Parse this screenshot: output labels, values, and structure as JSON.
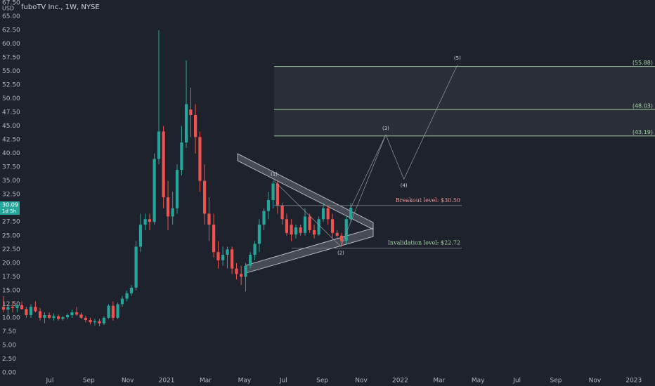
{
  "chart_data": {
    "type": "candlestick",
    "title": "fuboTV Inc., 1W, NYSE",
    "currency": "USD",
    "up_color": "#26a69a",
    "down_color": "#ef5350",
    "grid": false,
    "xlim": [
      -2.56,
      31.09
    ],
    "ylim": [
      -0.9,
      68
    ],
    "xticks": [
      {
        "value": 0,
        "label": "Jul"
      },
      {
        "value": 2,
        "label": "Sep"
      },
      {
        "value": 4,
        "label": "Nov"
      },
      {
        "value": 6,
        "label": "2021"
      },
      {
        "value": 8,
        "label": "Mar"
      },
      {
        "value": 10,
        "label": "May"
      },
      {
        "value": 12,
        "label": "Jul"
      },
      {
        "value": 14,
        "label": "Sep"
      },
      {
        "value": 16,
        "label": "Nov"
      },
      {
        "value": 18,
        "label": "2022"
      },
      {
        "value": 20,
        "label": "Mar"
      },
      {
        "value": 22,
        "label": "May"
      },
      {
        "value": 24,
        "label": "Jul"
      },
      {
        "value": 26,
        "label": "Sep"
      },
      {
        "value": 28,
        "label": "Nov"
      },
      {
        "value": 30,
        "label": "2023"
      }
    ],
    "yticks": [
      {
        "value": 0,
        "label": "0.00"
      },
      {
        "value": 2.5,
        "label": "2.50"
      },
      {
        "value": 5,
        "label": "5.00"
      },
      {
        "value": 7.5,
        "label": "7.50"
      },
      {
        "value": 10,
        "label": "10.00"
      },
      {
        "value": 12.5,
        "label": "12.50"
      },
      {
        "value": 15,
        "label": "15.00"
      },
      {
        "value": 17.5,
        "label": "17.50"
      },
      {
        "value": 20,
        "label": "20.00"
      },
      {
        "value": 22.5,
        "label": "22.50"
      },
      {
        "value": 25,
        "label": "25.00"
      },
      {
        "value": 27.5,
        "label": "27.50"
      },
      {
        "value": 32.5,
        "label": "32.50"
      },
      {
        "value": 35,
        "label": "35.00"
      },
      {
        "value": 37.5,
        "label": "37.50"
      },
      {
        "value": 40,
        "label": "40.00"
      },
      {
        "value": 42.5,
        "label": "42.50"
      },
      {
        "value": 45,
        "label": "45.00"
      },
      {
        "value": 47.5,
        "label": "47.50"
      },
      {
        "value": 50,
        "label": "50.00"
      },
      {
        "value": 52.5,
        "label": "52.50"
      },
      {
        "value": 55,
        "label": "55.00"
      },
      {
        "value": 57.5,
        "label": "57.50"
      },
      {
        "value": 60,
        "label": "60.00"
      },
      {
        "value": 62.5,
        "label": "62.50"
      },
      {
        "value": 65,
        "label": "65.00"
      },
      {
        "value": 67.5,
        "label": "67.50"
      }
    ],
    "x": [
      -2.38,
      -2.15,
      -1.91,
      -1.68,
      -1.44,
      -1.21,
      -0.97,
      -0.74,
      -0.5,
      -0.27,
      -0.03,
      0.2,
      0.44,
      0.67,
      0.91,
      1.14,
      1.38,
      1.61,
      1.84,
      2.08,
      2.31,
      2.55,
      2.78,
      3.02,
      3.25,
      3.49,
      3.72,
      3.96,
      4.19,
      4.43,
      4.66,
      4.9,
      5.13,
      5.37,
      5.6,
      5.84,
      6.07,
      6.31,
      6.54,
      6.77,
      7.01,
      7.24,
      7.48,
      7.71,
      7.95,
      8.18,
      8.42,
      8.65,
      8.89,
      9.12,
      9.36,
      9.59,
      9.83,
      10.06,
      10.3,
      10.53,
      10.76,
      11,
      11.23,
      11.47,
      11.7,
      11.94,
      12.17,
      12.41,
      12.64,
      12.88,
      13.11,
      13.35,
      13.58,
      13.82,
      14.05,
      14.29,
      14.52,
      14.76,
      14.99,
      15.23,
      15.46
    ],
    "candles": [
      [
        12,
        14,
        11,
        11.5
      ],
      [
        11.5,
        12.5,
        10.5,
        12
      ],
      [
        12,
        13,
        11,
        11.8
      ],
      [
        11.8,
        12.5,
        11,
        12.3
      ],
      [
        12.3,
        13,
        11.5,
        11.6
      ],
      [
        11.6,
        12,
        10,
        10.5
      ],
      [
        10.5,
        12.5,
        10,
        12
      ],
      [
        12,
        13,
        11,
        11.2
      ],
      [
        11.2,
        11.8,
        9.5,
        10
      ],
      [
        10,
        11,
        9,
        10.5
      ],
      [
        10.5,
        11,
        9.8,
        10
      ],
      [
        10,
        10.8,
        9.5,
        10.3
      ],
      [
        10.3,
        10.6,
        9.5,
        9.8
      ],
      [
        9.8,
        10.4,
        9.5,
        10.1
      ],
      [
        10.1,
        10.8,
        9.8,
        10.5
      ],
      [
        10.5,
        11.5,
        10,
        11
      ],
      [
        11,
        12,
        10.4,
        10.6
      ],
      [
        10.6,
        11,
        9.8,
        10
      ],
      [
        10,
        10.4,
        9.2,
        9.6
      ],
      [
        9.6,
        10,
        8.8,
        9.2
      ],
      [
        9.2,
        9.8,
        8.6,
        9.4
      ],
      [
        9.4,
        9.8,
        8.5,
        9
      ],
      [
        9,
        10.3,
        8.7,
        10
      ],
      [
        10,
        12.5,
        9.8,
        12.2
      ],
      [
        12.2,
        13,
        9.5,
        10
      ],
      [
        10,
        12.8,
        9.8,
        12.5
      ],
      [
        12.5,
        14,
        12,
        13.5
      ],
      [
        13.5,
        15,
        13,
        14.5
      ],
      [
        14.5,
        16,
        14,
        15.5
      ],
      [
        15.5,
        24,
        15,
        23
      ],
      [
        23,
        29,
        22,
        27
      ],
      [
        27,
        29,
        26,
        28
      ],
      [
        28,
        29,
        26,
        27.5
      ],
      [
        27.5,
        40,
        27,
        39
      ],
      [
        39,
        62.5,
        38,
        44
      ],
      [
        44,
        45,
        30,
        32
      ],
      [
        32,
        35,
        26,
        28.5
      ],
      [
        28.5,
        33,
        27,
        30
      ],
      [
        30,
        38,
        29,
        37
      ],
      [
        37,
        45,
        36,
        42
      ],
      [
        42,
        57,
        41,
        49
      ],
      [
        48,
        52,
        43,
        47
      ],
      [
        47,
        49,
        40,
        43
      ],
      [
        43,
        44,
        33,
        35
      ],
      [
        35,
        38,
        27,
        29
      ],
      [
        29,
        32,
        24,
        27
      ],
      [
        27,
        29,
        21,
        22
      ],
      [
        22,
        24,
        19,
        20.5
      ],
      [
        20.5,
        23,
        19.5,
        21.5
      ],
      [
        21.5,
        23,
        19,
        22.5
      ],
      [
        22.5,
        23,
        18,
        19
      ],
      [
        19,
        20,
        17,
        18
      ],
      [
        18,
        19.5,
        16,
        17.5
      ],
      [
        17.5,
        20,
        14.8,
        19.5
      ],
      [
        19.5,
        22,
        19,
        21.5
      ],
      [
        21.5,
        24,
        20.5,
        23.5
      ],
      [
        23.5,
        28,
        22,
        27
      ],
      [
        27,
        30,
        26,
        29.5
      ],
      [
        29.5,
        33,
        28,
        31.5
      ],
      [
        31.5,
        35,
        30,
        34.5
      ],
      [
        34.5,
        35,
        29,
        30.5
      ],
      [
        30.5,
        31,
        27,
        28
      ],
      [
        28,
        29,
        25,
        25.5
      ],
      [
        27,
        28,
        24,
        25.2
      ],
      [
        25.2,
        27,
        24.5,
        26.5
      ],
      [
        26.5,
        27,
        25,
        25.5
      ],
      [
        25.5,
        30,
        25,
        28.5
      ],
      [
        28.5,
        29,
        25.5,
        26
      ],
      [
        26,
        27,
        24.5,
        25.2
      ],
      [
        25.2,
        28.5,
        25,
        28
      ],
      [
        28,
        31,
        27.5,
        30
      ],
      [
        30,
        30.5,
        27,
        28
      ],
      [
        28,
        29,
        24.5,
        25.5
      ],
      [
        25.5,
        26,
        24.5,
        25
      ],
      [
        25,
        25.5,
        23,
        24
      ],
      [
        24,
        28.5,
        23.5,
        28
      ],
      [
        28,
        31,
        27.5,
        30.09
      ]
    ],
    "price_label": "30.09",
    "countdown": "1d 5h",
    "targets": [
      {
        "value": 55.88,
        "label": "(55.88)"
      },
      {
        "value": 48.03,
        "label": "(48.03)"
      },
      {
        "value": 43.19,
        "label": "(43.19)"
      }
    ],
    "breakout": {
      "value": 30.5,
      "label": "Breakout level: $30.50"
    },
    "invalidation": {
      "value": 22.72,
      "label": "Invalidation level: $22.72"
    },
    "waves": {
      "labels": [
        "(1)",
        "(2)",
        "(3)",
        "(4)",
        "(5)"
      ],
      "x": [
        11.52,
        14.95,
        17.26,
        18.19,
        20.94
      ],
      "values": [
        35,
        23,
        43.4,
        35.3,
        56.2
      ]
    }
  }
}
